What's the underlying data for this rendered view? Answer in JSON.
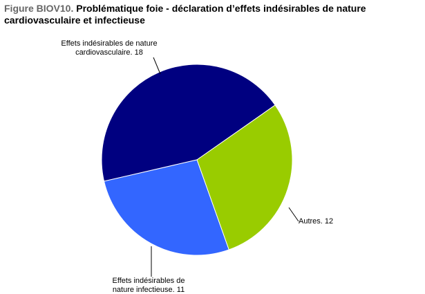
{
  "chart_data": {
    "type": "pie",
    "figure_label": "Figure BIOV10.",
    "title": "Problématique foie - déclaration d’effets indésirables de nature cardiovasculaire et infectieuse",
    "categories": [
      "Effets indésirables de nature cardiovasculaire.",
      "Autres.",
      "Effets indésirables de nature infectieuse."
    ],
    "values": [
      18,
      12,
      11
    ],
    "colors": [
      "#000080",
      "#99cc00",
      "#3366ff"
    ]
  }
}
